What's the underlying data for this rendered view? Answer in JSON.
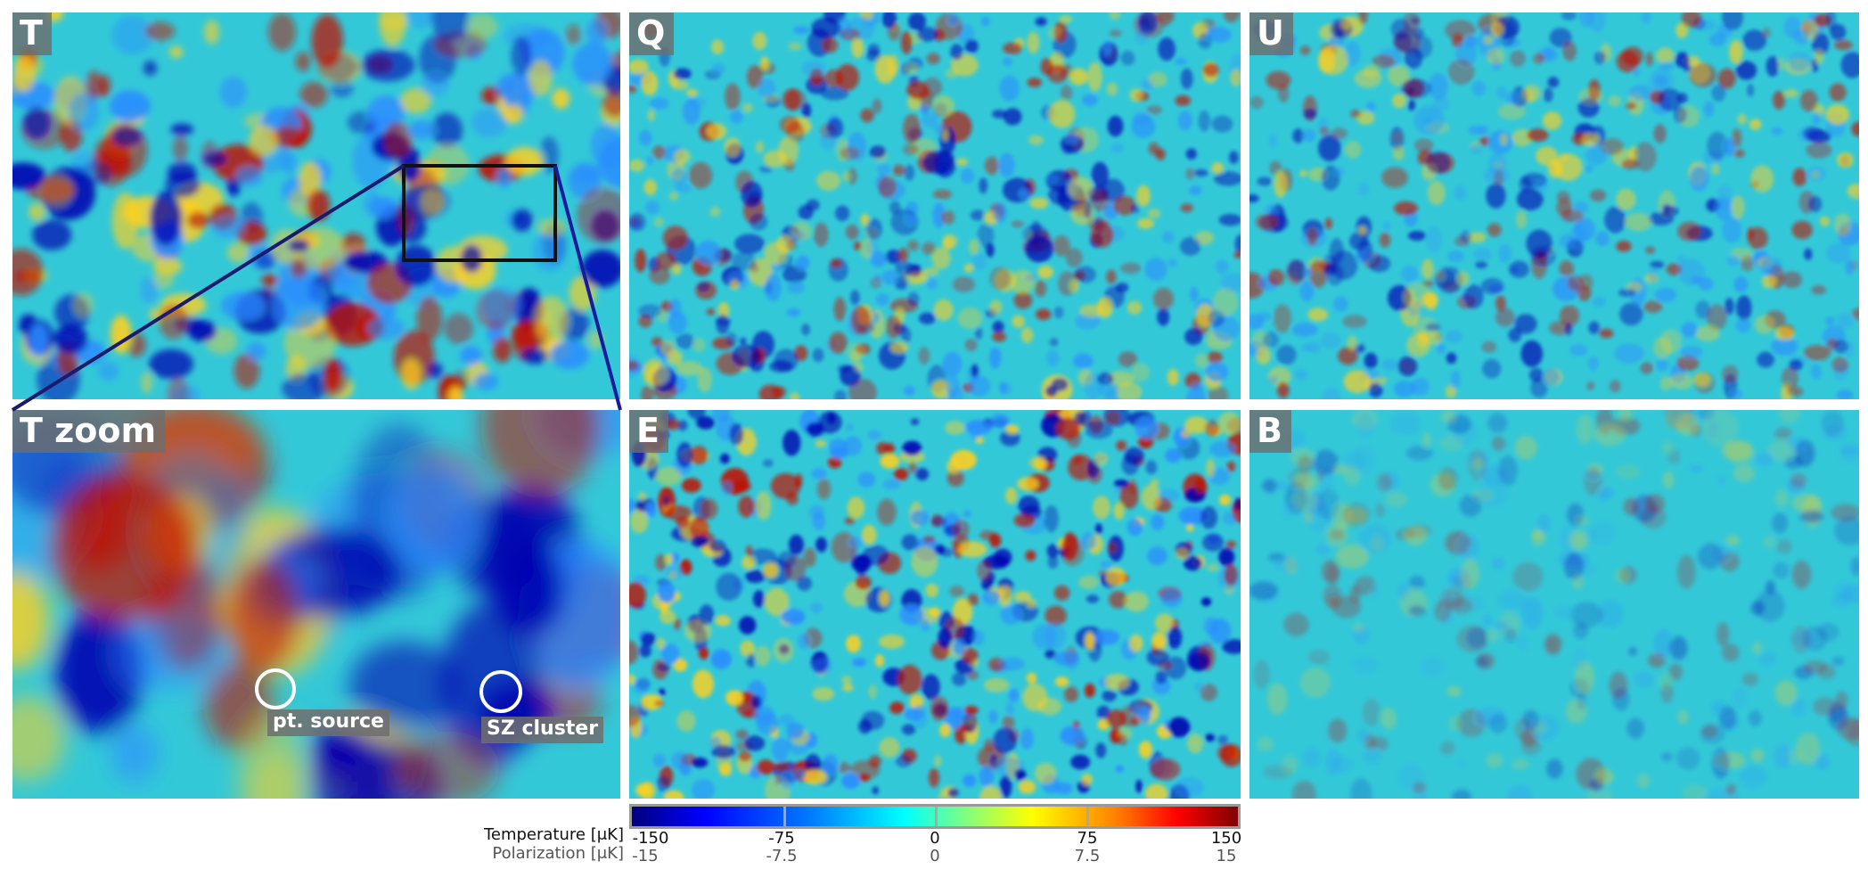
{
  "panels": [
    {
      "id": "T",
      "label": "T",
      "seed": 11,
      "blobs": 260,
      "rmin": 8,
      "rmax": 22,
      "amp": 1.0
    },
    {
      "id": "Q",
      "label": "Q",
      "seed": 23,
      "blobs": 520,
      "rmin": 5,
      "rmax": 12,
      "amp": 0.8
    },
    {
      "id": "U",
      "label": "U",
      "seed": 37,
      "blobs": 500,
      "rmin": 5,
      "rmax": 12,
      "amp": 0.75
    },
    {
      "id": "Tzoom",
      "label": "T zoom",
      "seed": 51,
      "blobs": 46,
      "rmin": 28,
      "rmax": 70,
      "amp": 1.0
    },
    {
      "id": "E",
      "label": "E",
      "seed": 67,
      "blobs": 560,
      "rmin": 5,
      "rmax": 12,
      "amp": 1.0
    },
    {
      "id": "B",
      "label": "B",
      "seed": 79,
      "blobs": 300,
      "rmin": 6,
      "rmax": 14,
      "amp": 0.35
    }
  ],
  "annotations": {
    "point_source": "pt. source",
    "sz_cluster": "SZ cluster"
  },
  "colorbar": {
    "temperature_label": "Temperature [μK]",
    "polarization_label": "Polarization [μK]",
    "temperature_ticks": [
      "-150",
      "-75",
      "0",
      "75",
      "150"
    ],
    "polarization_ticks": [
      "-15",
      "-7.5",
      "0",
      "7.5",
      "15"
    ]
  },
  "colors": {
    "cold": "#0000b0",
    "cool": "#2a8cff",
    "neutral": "#33c8d8",
    "warm": "#ffd020",
    "hot": "#c01000"
  }
}
